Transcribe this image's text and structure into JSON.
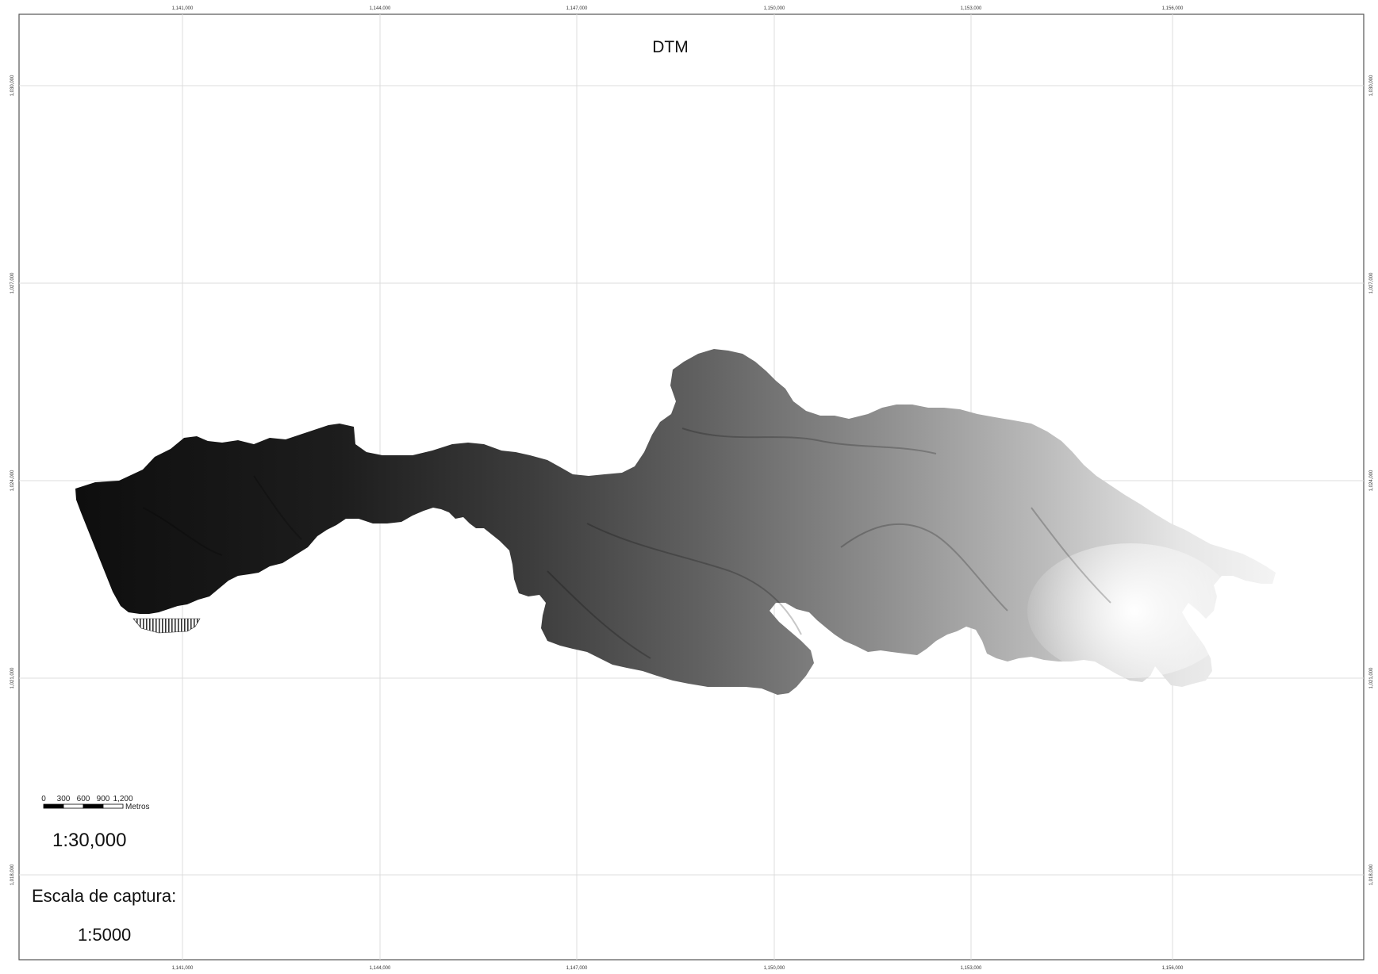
{
  "map": {
    "title": "DTM",
    "scale_ratio": "1:30,000",
    "capture_scale_label": "Escala de captura:",
    "capture_scale_value": "1:5000",
    "x_grid_labels": [
      "1,141,000",
      "1,144,000",
      "1,147,000",
      "1,150,000",
      "1,153,000",
      "1,156,000"
    ],
    "y_grid_labels": [
      "1,030,000",
      "1,027,000",
      "1,024,000",
      "1,021,000",
      "1,018,000"
    ],
    "scale_bar": {
      "tick_labels": [
        "0",
        "300",
        "600",
        "900",
        "1,200"
      ],
      "unit": "Metros"
    },
    "colors": {
      "grid": "#d9d9d9",
      "frame": "#555555",
      "terrain_low": "#111111",
      "terrain_high": "#f2f2f2"
    }
  }
}
